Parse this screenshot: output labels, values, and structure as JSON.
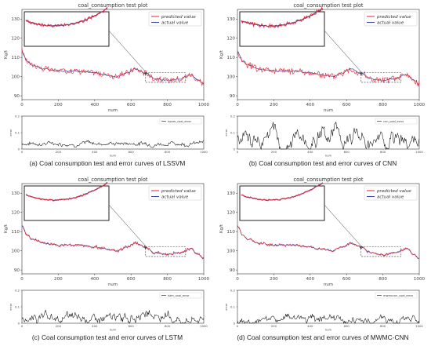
{
  "panels": [
    {
      "title": "coal_consumption test plot",
      "caption": "(a) Coal consumption test and error curves of LSSVM",
      "ylabel": "Kg/t",
      "xlabel": "num",
      "legend": [
        "predicted value",
        "actual value"
      ],
      "error_label": "lssvm_coal_error",
      "error_ylabel": "error",
      "error_xlabel": "num",
      "error_yticks": [
        "0.2",
        "0.1",
        "0"
      ]
    },
    {
      "title": "coal_consumption test plot",
      "caption": "(b) Coal consumption test and error curves of CNN",
      "ylabel": "Kg/t",
      "xlabel": "num",
      "legend": [
        "predicted value",
        "actual value"
      ],
      "error_label": "cnn_coal_error",
      "error_ylabel": "error",
      "error_xlabel": "num",
      "error_yticks": [
        "0.2",
        "0.1",
        "0"
      ]
    },
    {
      "title": "coal_consumption test plot",
      "caption": "(c) Coal consumption test and error curves of LSTM",
      "ylabel": "Kg/t",
      "xlabel": "num",
      "legend": [
        "predicted value",
        "actual value"
      ],
      "error_label": "lstm_coal_error",
      "error_ylabel": "error",
      "error_xlabel": "num",
      "error_yticks": [
        "0.2",
        "0.1",
        "0"
      ]
    },
    {
      "title": "coal_consumption test plot",
      "caption": "(d) Coal consumption test and error curves of MWMC-CNN",
      "ylabel": "Kg/t",
      "xlabel": "num",
      "legend": [
        "predicted value",
        "actual value"
      ],
      "error_label": "mwmccnn_coal_error",
      "error_ylabel": "error",
      "error_xlabel": "num",
      "error_yticks": [
        "0.2",
        "0.1",
        "0"
      ]
    }
  ],
  "chart_data": [
    {
      "type": "line",
      "title": "coal_consumption test plot",
      "xlabel": "num",
      "ylabel": "Kg/t",
      "xlim": [
        0,
        1000
      ],
      "ylim": [
        88,
        135
      ],
      "xticks": [
        0,
        200,
        400,
        600,
        800,
        1000
      ],
      "yticks": [
        90,
        100,
        110,
        120,
        130
      ],
      "actual_anchors": [
        [
          0,
          113
        ],
        [
          30,
          108
        ],
        [
          60,
          106
        ],
        [
          120,
          104
        ],
        [
          200,
          103
        ],
        [
          300,
          103
        ],
        [
          400,
          102
        ],
        [
          450,
          101
        ],
        [
          520,
          100
        ],
        [
          580,
          102
        ],
        [
          620,
          104
        ],
        [
          680,
          102
        ],
        [
          730,
          99
        ],
        [
          800,
          98
        ],
        [
          870,
          99
        ],
        [
          930,
          101
        ],
        [
          970,
          98
        ],
        [
          1000,
          96
        ]
      ],
      "predicted_noise": 1.4,
      "series": [
        {
          "name": "predicted value",
          "color": "#e8232f"
        },
        {
          "name": "actual value",
          "color": "#3a45a6"
        }
      ],
      "inset_x_range": [
        680,
        900
      ],
      "inset_y_range": [
        97,
        102
      ],
      "error": {
        "name": "lssvm_coal_error",
        "ylim": [
          0,
          0.2
        ],
        "mean": 0.035,
        "amp": 0.012,
        "xlim": [
          0,
          1000
        ]
      }
    },
    {
      "type": "line",
      "title": "coal_consumption test plot",
      "xlabel": "num",
      "ylabel": "Kg/t",
      "xlim": [
        0,
        1000
      ],
      "ylim": [
        88,
        135
      ],
      "xticks": [
        0,
        200,
        400,
        600,
        800,
        1000
      ],
      "yticks": [
        90,
        100,
        110,
        120,
        130
      ],
      "actual_anchors": [
        [
          0,
          113
        ],
        [
          30,
          108
        ],
        [
          60,
          106
        ],
        [
          120,
          104
        ],
        [
          200,
          103
        ],
        [
          300,
          103
        ],
        [
          400,
          102
        ],
        [
          450,
          101
        ],
        [
          520,
          100
        ],
        [
          580,
          102
        ],
        [
          620,
          104
        ],
        [
          680,
          102
        ],
        [
          730,
          99
        ],
        [
          800,
          98
        ],
        [
          870,
          99
        ],
        [
          930,
          101
        ],
        [
          970,
          98
        ],
        [
          1000,
          96
        ]
      ],
      "predicted_noise": 1.8,
      "series": [
        {
          "name": "predicted value",
          "color": "#e8232f"
        },
        {
          "name": "actual value",
          "color": "#3a45a6"
        }
      ],
      "inset_x_range": [
        680,
        900
      ],
      "inset_y_range": [
        97,
        102
      ],
      "error": {
        "name": "cnn_coal_error",
        "ylim": [
          0,
          0.2
        ],
        "mean": 0.07,
        "amp": 0.05,
        "xlim": [
          0,
          1000
        ]
      }
    },
    {
      "type": "line",
      "title": "coal_consumption test plot",
      "xlabel": "num",
      "ylabel": "Kg/t",
      "xlim": [
        0,
        1000
      ],
      "ylim": [
        88,
        135
      ],
      "xticks": [
        0,
        200,
        400,
        600,
        800,
        1000
      ],
      "yticks": [
        90,
        100,
        110,
        120,
        130
      ],
      "actual_anchors": [
        [
          0,
          113
        ],
        [
          30,
          108
        ],
        [
          60,
          106
        ],
        [
          120,
          104
        ],
        [
          200,
          103
        ],
        [
          300,
          103
        ],
        [
          400,
          102
        ],
        [
          450,
          101
        ],
        [
          520,
          100
        ],
        [
          580,
          102
        ],
        [
          620,
          104
        ],
        [
          680,
          102
        ],
        [
          730,
          99
        ],
        [
          800,
          98
        ],
        [
          870,
          99
        ],
        [
          930,
          101
        ],
        [
          970,
          98
        ],
        [
          1000,
          96
        ]
      ],
      "predicted_noise": 0.7,
      "series": [
        {
          "name": "predicted value",
          "color": "#e8232f"
        },
        {
          "name": "actual value",
          "color": "#3a45a6"
        }
      ],
      "inset_x_range": [
        680,
        900
      ],
      "inset_y_range": [
        97,
        102
      ],
      "error": {
        "name": "lstm_coal_error",
        "ylim": [
          0,
          0.2
        ],
        "mean": 0.03,
        "amp": 0.025,
        "xlim": [
          0,
          1000
        ]
      }
    },
    {
      "type": "line",
      "title": "coal_consumption test plot",
      "xlabel": "num",
      "ylabel": "Kg/t",
      "xlim": [
        0,
        1000
      ],
      "ylim": [
        88,
        135
      ],
      "xticks": [
        0,
        200,
        400,
        600,
        800,
        1000
      ],
      "yticks": [
        90,
        100,
        110,
        120,
        130
      ],
      "actual_anchors": [
        [
          0,
          113
        ],
        [
          30,
          108
        ],
        [
          60,
          106
        ],
        [
          120,
          104
        ],
        [
          200,
          103
        ],
        [
          300,
          103
        ],
        [
          400,
          102
        ],
        [
          450,
          101
        ],
        [
          520,
          100
        ],
        [
          580,
          102
        ],
        [
          620,
          104
        ],
        [
          680,
          102
        ],
        [
          730,
          99
        ],
        [
          800,
          98
        ],
        [
          870,
          99
        ],
        [
          930,
          101
        ],
        [
          970,
          98
        ],
        [
          1000,
          96
        ]
      ],
      "predicted_noise": 0.5,
      "series": [
        {
          "name": "predicted value",
          "color": "#e8232f"
        },
        {
          "name": "actual value",
          "color": "#3a45a6"
        }
      ],
      "inset_x_range": [
        680,
        900
      ],
      "inset_y_range": [
        97,
        102
      ],
      "error": {
        "name": "mwmccnn_coal_error",
        "ylim": [
          0,
          0.2
        ],
        "mean": 0.02,
        "amp": 0.02,
        "xlim": [
          0,
          1000
        ]
      }
    }
  ]
}
